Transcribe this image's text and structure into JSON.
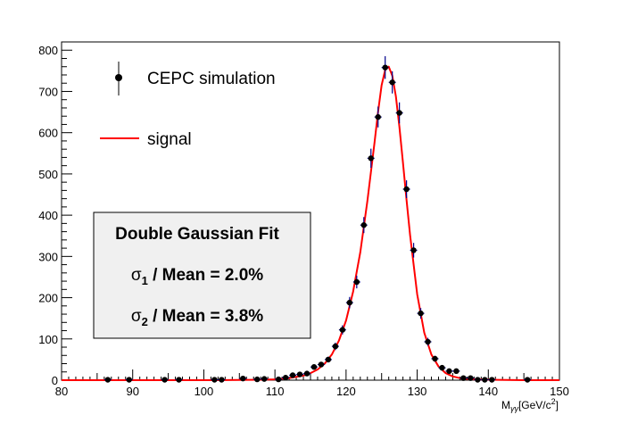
{
  "chart_data": {
    "type": "scatter",
    "xlabel": "M",
    "xlabel_sub": "γγ",
    "xlabel_unit": "[GeV/c",
    "xlabel_sup": "2",
    "xlabel_close": "]",
    "xlim": [
      80,
      150
    ],
    "ylim": [
      0,
      820
    ],
    "x_ticks": [
      "80",
      "90",
      "100",
      "110",
      "120",
      "130",
      "140",
      "150"
    ],
    "y_ticks": [
      "0",
      "100",
      "200",
      "300",
      "400",
      "500",
      "600",
      "700",
      "800"
    ],
    "legend_position": "top-left",
    "series": [
      {
        "name": "CEPC simulation",
        "kind": "points",
        "x": [
          86.5,
          89.5,
          94.5,
          96.5,
          101.5,
          102.5,
          105.5,
          107.5,
          108.5,
          110.5,
          111.5,
          112.5,
          113.5,
          114.5,
          115.5,
          116.5,
          117.5,
          118.5,
          119.5,
          120.5,
          121.5,
          122.5,
          123.5,
          124.5,
          125.5,
          126.5,
          127.5,
          128.5,
          129.5,
          130.5,
          131.5,
          132.5,
          133.5,
          134.5,
          135.5,
          136.5,
          137.5,
          138.5,
          139.5,
          140.5,
          145.5
        ],
        "y": [
          1,
          1,
          1,
          1,
          1,
          1,
          4,
          2,
          3,
          2,
          6,
          12,
          14,
          16,
          32,
          38,
          50,
          82,
          122,
          188,
          238,
          376,
          538,
          638,
          758,
          722,
          648,
          463,
          315,
          162,
          93,
          52,
          30,
          22,
          22,
          5,
          5,
          1,
          1,
          1,
          1
        ]
      },
      {
        "name": "signal",
        "kind": "line",
        "color": "#ff0000",
        "x": [
          80,
          100,
          105,
          108,
          110,
          112,
          114,
          115,
          116,
          117,
          118,
          119,
          120,
          121,
          122,
          123,
          124,
          124.5,
          125,
          125.5,
          126,
          126.5,
          127,
          127.5,
          128,
          128.5,
          129,
          130,
          131,
          132,
          133,
          134,
          135,
          136,
          137,
          138,
          140,
          145,
          150
        ],
        "y": [
          0,
          0,
          0.5,
          1,
          2,
          5,
          11,
          17,
          26,
          40,
          62,
          96,
          145,
          215,
          310,
          435,
          575,
          650,
          715,
          752,
          760,
          738,
          688,
          615,
          528,
          438,
          352,
          208,
          115,
          62,
          33,
          17,
          9,
          5,
          3,
          2,
          1,
          0,
          0
        ]
      }
    ],
    "legend": {
      "points_label": "CEPC simulation",
      "line_label": "signal"
    },
    "fit_box": {
      "title": "Double Gaussian Fit",
      "line1_symbol": "σ",
      "line1_sub": "1",
      "line1_text": " / Mean = 2.0%",
      "line2_symbol": "σ",
      "line2_sub": "2",
      "line2_text": " / Mean = 3.8%"
    },
    "colors": {
      "points": "#000000",
      "error_bars": "#00008b",
      "fit_line": "#ff0000",
      "box_fill": "#f0f0f0"
    }
  }
}
